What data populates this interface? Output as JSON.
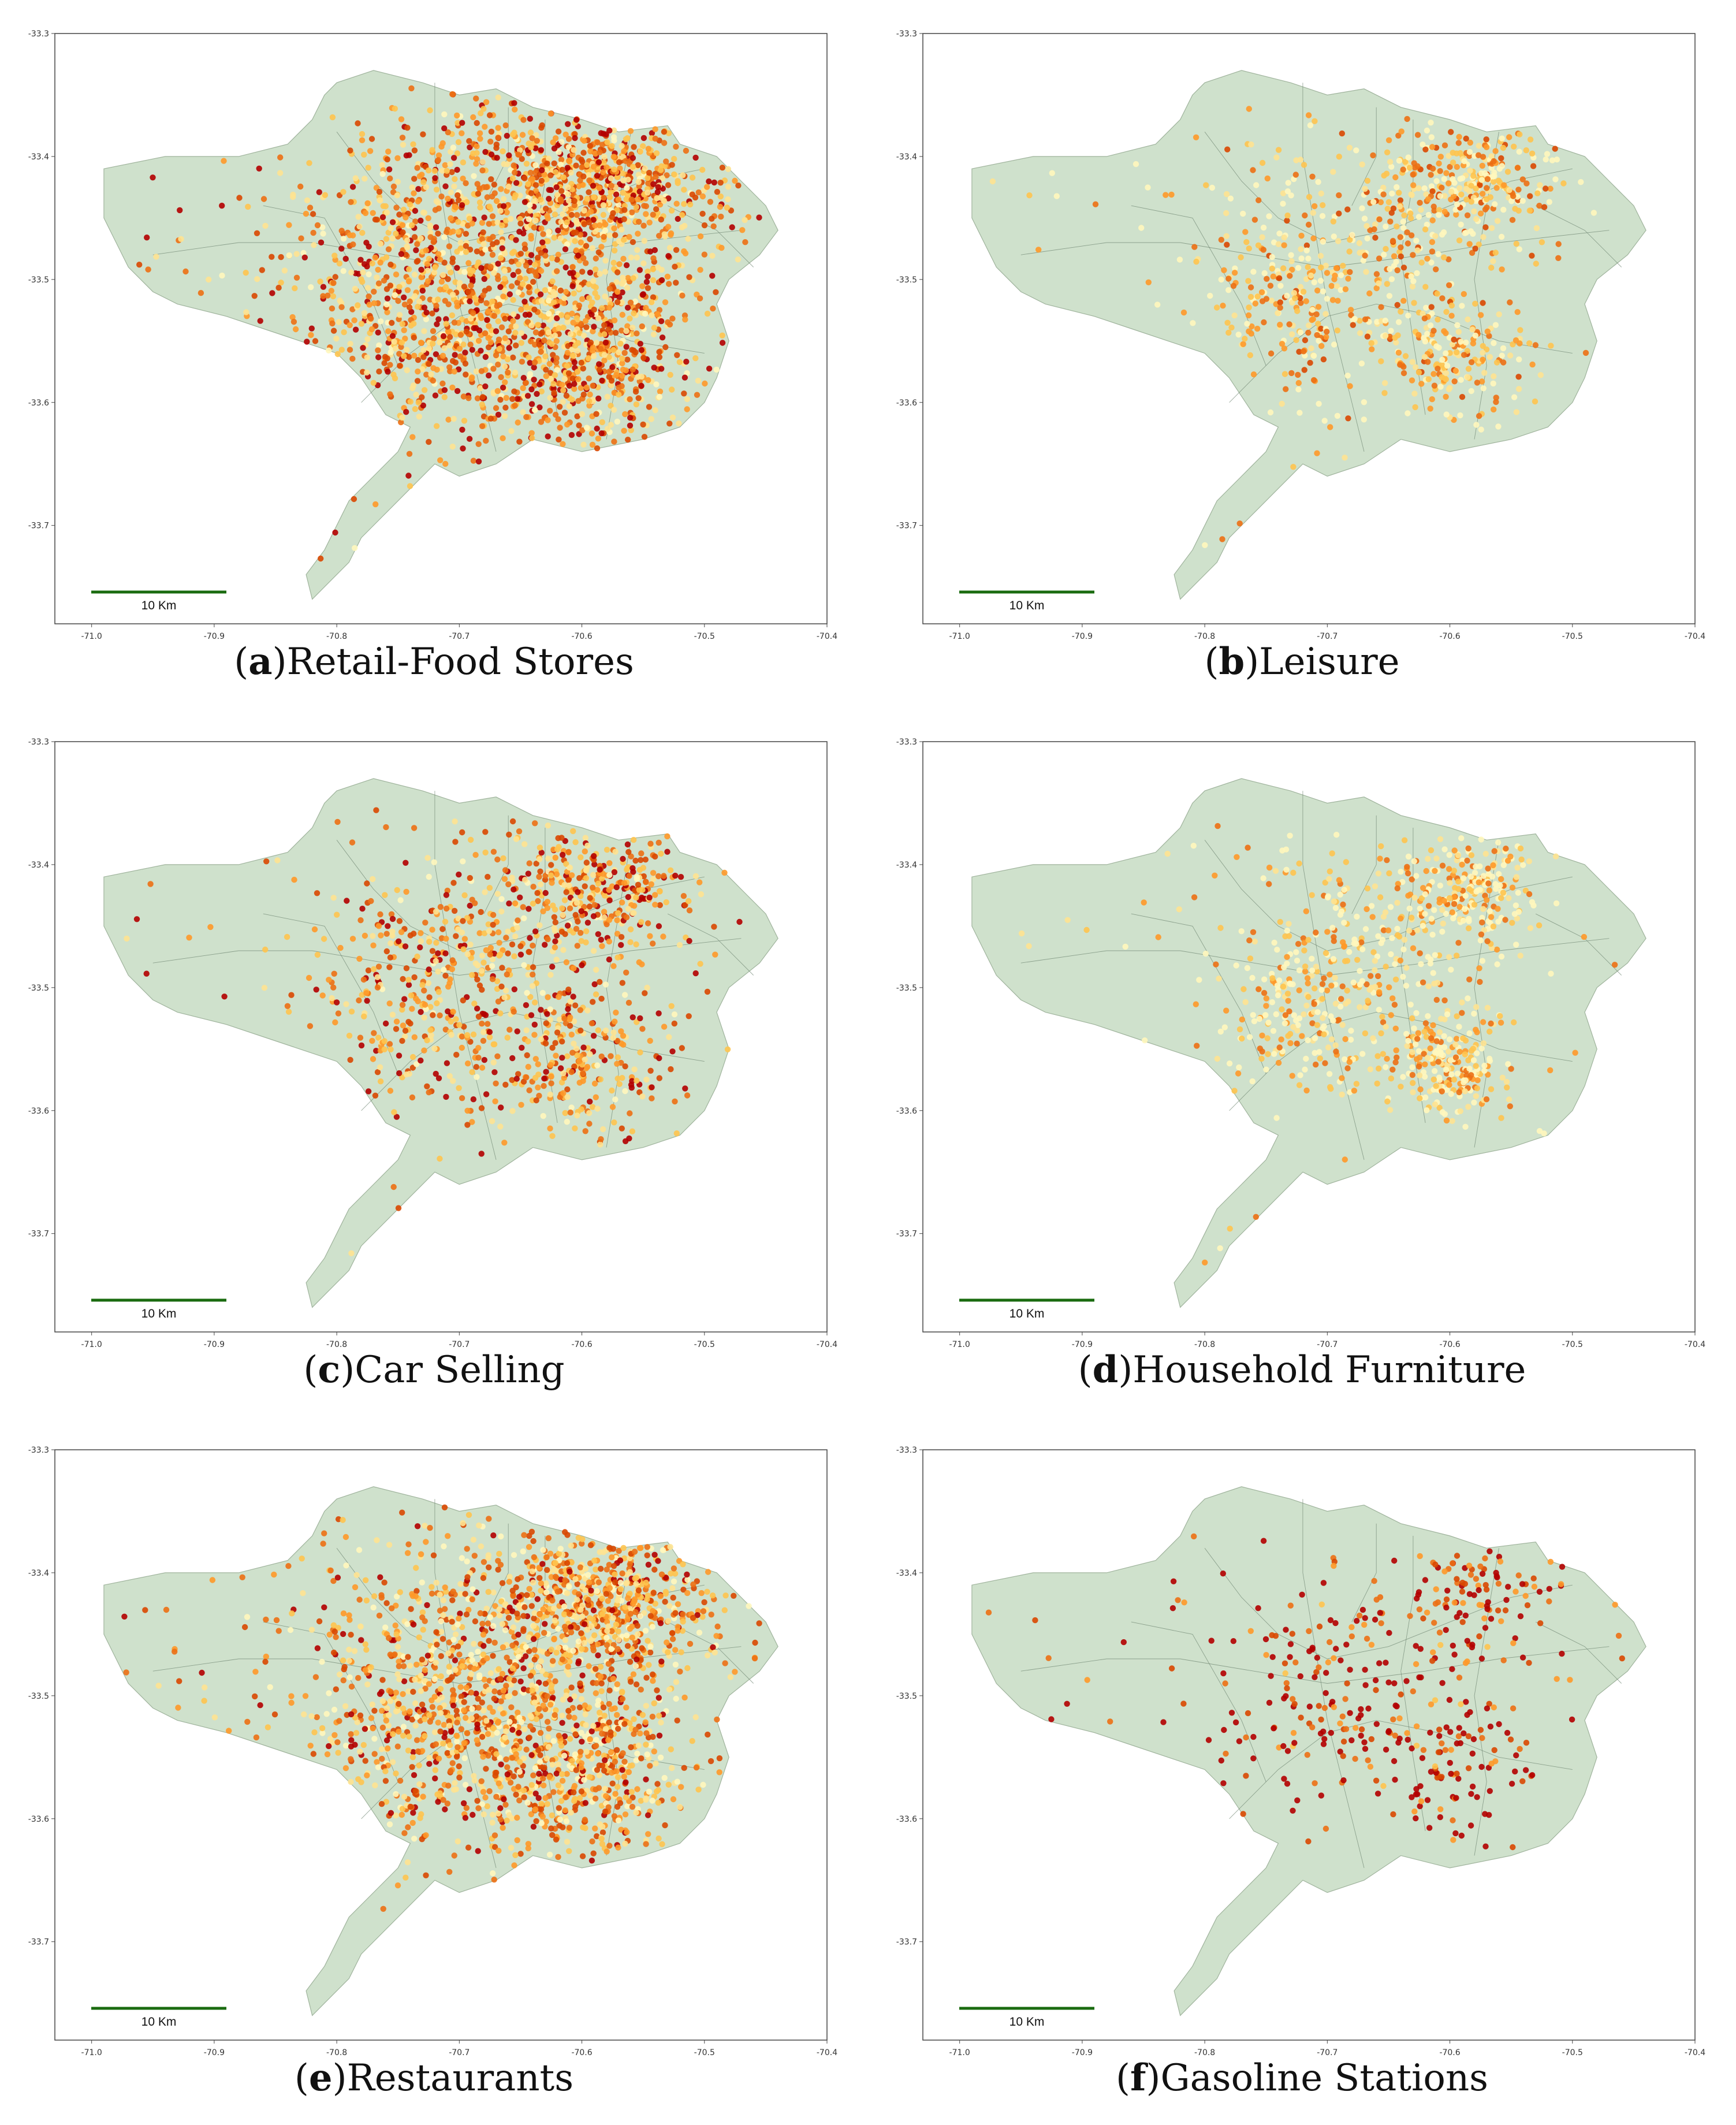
{
  "colors": {
    "land": "#cfe1cc",
    "land_edge": "#9fb39c",
    "district": "#6e8470",
    "frame": "#444444",
    "scale_bar": "#1a6b0f",
    "density_ramp": [
      "#fff7bc",
      "#fee391",
      "#fec44f",
      "#fe9929",
      "#ec7014",
      "#d94801",
      "#b30000"
    ]
  },
  "axes": {
    "x_ticks": [
      "-71.0",
      "-70.9",
      "-70.8",
      "-70.7",
      "-70.6",
      "-70.5",
      "-70.4"
    ],
    "y_ticks": [
      "-33.3",
      "-33.4",
      "-33.5",
      "-33.6",
      "-33.7"
    ],
    "x_range": [
      -71.03,
      -70.4
    ],
    "y_range": [
      -33.3,
      -33.78
    ]
  },
  "scale_bar_label": "10 Km",
  "panels": [
    {
      "letter": "a",
      "title": "Retail-Food Stores",
      "density": "very-high",
      "points": 2600,
      "spread": 1.0,
      "heat": 0.55
    },
    {
      "letter": "b",
      "title": "Leisure",
      "density": "medium",
      "points": 950,
      "spread": 0.7,
      "heat": 0.35
    },
    {
      "letter": "c",
      "title": "Car Selling",
      "density": "medium",
      "points": 1100,
      "spread": 0.8,
      "heat": 0.55
    },
    {
      "letter": "d",
      "title": "Household Furniture",
      "density": "medium",
      "points": 900,
      "spread": 0.6,
      "heat": 0.25
    },
    {
      "letter": "e",
      "title": "Restaurants",
      "density": "high",
      "points": 2200,
      "spread": 0.95,
      "heat": 0.5
    },
    {
      "letter": "f",
      "title": "Gasoline Stations",
      "density": "low",
      "points": 420,
      "spread": 0.75,
      "heat": 0.85
    }
  ]
}
